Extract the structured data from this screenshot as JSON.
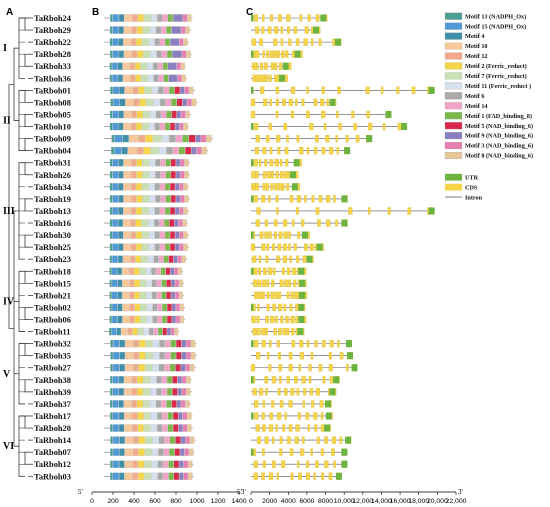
{
  "panels": [
    "A",
    "B",
    "C"
  ],
  "groups": [
    {
      "label": "I",
      "first": 0,
      "last": 5
    },
    {
      "label": "II",
      "first": 6,
      "last": 11
    },
    {
      "label": "III",
      "first": 12,
      "last": 20
    },
    {
      "label": "IV",
      "first": 21,
      "last": 26
    },
    {
      "label": "V",
      "first": 27,
      "last": 32
    },
    {
      "label": "VI",
      "first": 33,
      "last": 38
    }
  ],
  "genes": [
    "TaRboh24",
    "TaRboh29",
    "TaRboh22",
    "TaRboh28",
    "TaRboh33",
    "TaRboh36",
    "TaRboh01",
    "TaRboh08",
    "TaRboh05",
    "TaRboh10",
    "TaRboh09",
    "TaRboh04",
    "TaRboh31",
    "TaRboh26",
    "TaRboh34",
    "TaRboh19",
    "TaRboh13",
    "TaRboh16",
    "TaRboh30",
    "TaRboh25",
    "TaRboh23",
    "TaRboh18",
    "TaRboh15",
    "TaRboh21",
    "TaRboh02",
    "TaRboh06",
    "TaRboh11",
    "TaRboh32",
    "TaRboh35",
    "TaRboh27",
    "TaRboh38",
    "TaRboh39",
    "TaRboh37",
    "TaRboh17",
    "TaRboh20",
    "TaRboh14",
    "TaRboh07",
    "TaRboh12",
    "TaRboh03"
  ],
  "protein_lengths": [
    920,
    900,
    880,
    910,
    850,
    860,
    940,
    970,
    900,
    880,
    1130,
    1080,
    890,
    890,
    880,
    890,
    880,
    870,
    880,
    880,
    860,
    820,
    830,
    830,
    840,
    840,
    780,
    960,
    960,
    950,
    910,
    910,
    900,
    920,
    920,
    950,
    940,
    930,
    930
  ],
  "gene_lengths": [
    8200,
    7400,
    9800,
    5400,
    4100,
    3700,
    20000,
    9200,
    15300,
    17000,
    13200,
    10800,
    5300,
    4900,
    5100,
    10500,
    20000,
    10500,
    6200,
    7800,
    6700,
    5800,
    5900,
    5900,
    5800,
    5800,
    5700,
    11000,
    11100,
    11600,
    9600,
    9200,
    8700,
    8800,
    8600,
    10900,
    10500,
    10500,
    9900
  ],
  "legend_motifs": [
    {
      "label": "Motif 13 (NADPH_Ox)",
      "color": "#4a9e94"
    },
    {
      "label": "Motif 15 (NADPH_Ox)",
      "color": "#4f9ad6"
    },
    {
      "label": "Motif 4",
      "color": "#3f8fa8"
    },
    {
      "label": "Motif 10",
      "color": "#f7c89a"
    },
    {
      "label": "Motif 12",
      "color": "#f2aa8c"
    },
    {
      "label": "Motif 2 (Ferric_reduct)",
      "color": "#f5d64a"
    },
    {
      "label": "Motif 7 (Ferric_reduct)",
      "color": "#c9e0b4"
    },
    {
      "label": "Motif 11 (Ferric_reduct )",
      "color": "#d6dfee"
    },
    {
      "label": "Motif 6",
      "color": "#a9a9a9"
    },
    {
      "label": "Motif 14",
      "color": "#f2a4c8"
    },
    {
      "label": "Motif 1 (FAD_binding_8)",
      "color": "#7ab84b"
    },
    {
      "label": "Motif 5 (NAD_binding_6)",
      "color": "#d9284c"
    },
    {
      "label": "Motif 9 (NAD_binding_6)",
      "color": "#8a7fbf"
    },
    {
      "label": "Motif 3 (NAD_binding_6)",
      "color": "#e87fb0"
    },
    {
      "label": "Motif 8 (NAD_binding_6)",
      "color": "#e8c79a"
    }
  ],
  "legend_structure": [
    {
      "label": "UTR",
      "color": "#6db33f",
      "kind": "box"
    },
    {
      "label": "CDS",
      "color": "#f5d44a",
      "kind": "box"
    },
    {
      "label": "Intron",
      "color": "#555555",
      "kind": "line"
    }
  ],
  "axis_b": {
    "start": "5'",
    "end": "3'",
    "min": 0,
    "max": 1400,
    "ticks": [
      0,
      200,
      400,
      600,
      800,
      1000,
      1200,
      1400
    ]
  },
  "axis_c": {
    "start": "5'",
    "end": "3'",
    "min": 0,
    "max": 22000,
    "ticks": [
      "0",
      "2000",
      "4000",
      "6000",
      "8000",
      "10,000",
      "12,000",
      "14,000",
      "16,000",
      "18,000",
      "20,000",
      "22,000"
    ]
  }
}
